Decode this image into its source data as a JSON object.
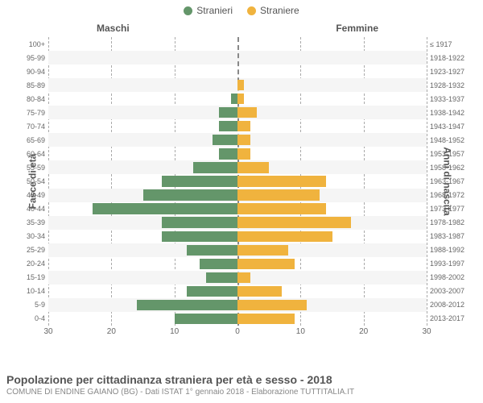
{
  "legend": [
    {
      "label": "Stranieri",
      "color": "#64966a"
    },
    {
      "label": "Straniere",
      "color": "#f0b33e"
    }
  ],
  "headers": {
    "left": "Maschi",
    "right": "Femmine"
  },
  "axis_titles": {
    "left": "Fasce di età",
    "right": "Anni di nascita"
  },
  "xmax": 30,
  "xticks": [
    30,
    20,
    10,
    0,
    10,
    20,
    30
  ],
  "grid_at": [
    30,
    20,
    10,
    0,
    10,
    20,
    30
  ],
  "grid_color": "#aaa",
  "bg_stripe": "#f5f5f5",
  "colors": {
    "male": "#64966a",
    "female": "#f0b33e"
  },
  "rows": [
    {
      "age": "100+",
      "birth": "≤ 1917",
      "m": 0,
      "f": 0
    },
    {
      "age": "95-99",
      "birth": "1918-1922",
      "m": 0,
      "f": 0
    },
    {
      "age": "90-94",
      "birth": "1923-1927",
      "m": 0,
      "f": 0
    },
    {
      "age": "85-89",
      "birth": "1928-1932",
      "m": 0,
      "f": 1
    },
    {
      "age": "80-84",
      "birth": "1933-1937",
      "m": 1,
      "f": 1
    },
    {
      "age": "75-79",
      "birth": "1938-1942",
      "m": 3,
      "f": 3
    },
    {
      "age": "70-74",
      "birth": "1943-1947",
      "m": 3,
      "f": 2
    },
    {
      "age": "65-69",
      "birth": "1948-1952",
      "m": 4,
      "f": 2
    },
    {
      "age": "60-64",
      "birth": "1953-1957",
      "m": 3,
      "f": 2
    },
    {
      "age": "55-59",
      "birth": "1958-1962",
      "m": 7,
      "f": 5
    },
    {
      "age": "50-54",
      "birth": "1963-1967",
      "m": 12,
      "f": 14
    },
    {
      "age": "45-49",
      "birth": "1968-1972",
      "m": 15,
      "f": 13
    },
    {
      "age": "40-44",
      "birth": "1973-1977",
      "m": 23,
      "f": 14
    },
    {
      "age": "35-39",
      "birth": "1978-1982",
      "m": 12,
      "f": 18
    },
    {
      "age": "30-34",
      "birth": "1983-1987",
      "m": 12,
      "f": 15
    },
    {
      "age": "25-29",
      "birth": "1988-1992",
      "m": 8,
      "f": 8
    },
    {
      "age": "20-24",
      "birth": "1993-1997",
      "m": 6,
      "f": 9
    },
    {
      "age": "15-19",
      "birth": "1998-2002",
      "m": 5,
      "f": 2
    },
    {
      "age": "10-14",
      "birth": "2003-2007",
      "m": 8,
      "f": 7
    },
    {
      "age": "5-9",
      "birth": "2008-2012",
      "m": 16,
      "f": 11
    },
    {
      "age": "0-4",
      "birth": "2013-2017",
      "m": 10,
      "f": 9
    }
  ],
  "caption": {
    "main": "Popolazione per cittadinanza straniera per età e sesso - 2018",
    "sub": "COMUNE DI ENDINE GAIANO (BG) - Dati ISTAT 1° gennaio 2018 - Elaborazione TUTTITALIA.IT"
  }
}
